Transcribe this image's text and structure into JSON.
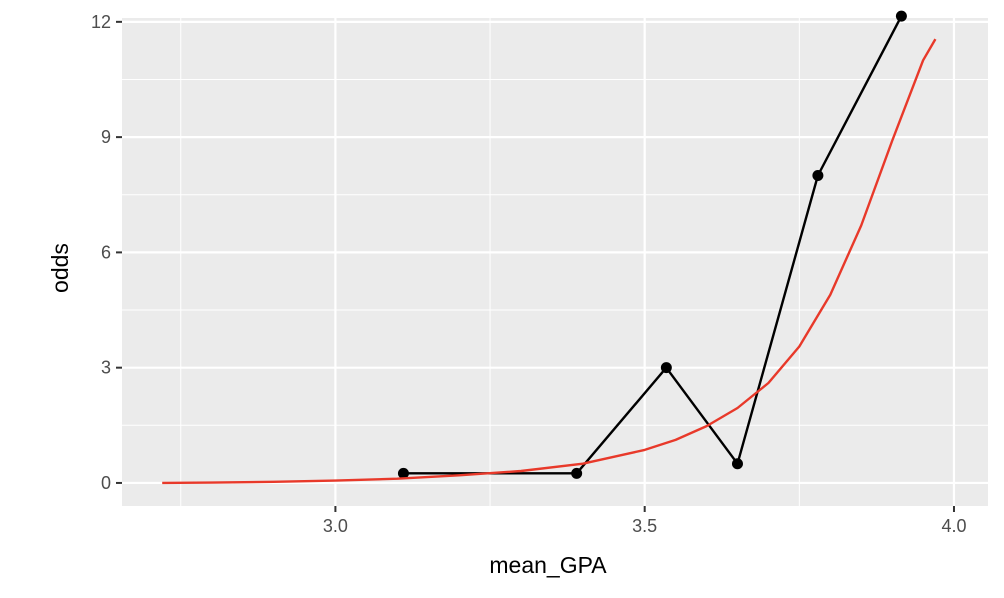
{
  "chart_data": {
    "type": "line",
    "title": "",
    "xlabel": "mean_GPA",
    "ylabel": "odds",
    "xlim": [
      2.655,
      4.055
    ],
    "ylim": [
      -0.6,
      12.1
    ],
    "x_ticks": [
      3.0,
      3.5,
      4.0
    ],
    "x_tick_labels": [
      "3.0",
      "3.5",
      "4.0"
    ],
    "y_ticks": [
      0,
      3,
      6,
      9,
      12
    ],
    "y_tick_labels": [
      "0",
      "3",
      "6",
      "9",
      "12"
    ],
    "grid": true,
    "panel_background": "#ebebeb",
    "series": [
      {
        "style": "line+points",
        "color": "#000000",
        "x": [
          3.11,
          3.39,
          3.535,
          3.65,
          3.78,
          3.915
        ],
        "y": [
          0.25,
          0.25,
          3.0,
          0.5,
          8.0,
          12.15
        ]
      },
      {
        "style": "line",
        "color": "#e8392a",
        "x": [
          2.72,
          2.8,
          2.9,
          3.0,
          3.1,
          3.2,
          3.3,
          3.4,
          3.5,
          3.55,
          3.6,
          3.65,
          3.7,
          3.75,
          3.8,
          3.85,
          3.9,
          3.95,
          3.97
        ],
        "y": [
          0.0,
          0.01,
          0.03,
          0.06,
          0.11,
          0.2,
          0.31,
          0.5,
          0.86,
          1.12,
          1.48,
          1.95,
          2.6,
          3.55,
          4.9,
          6.7,
          8.9,
          11.0,
          11.55
        ]
      }
    ]
  }
}
